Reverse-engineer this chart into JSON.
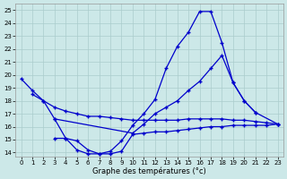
{
  "xlabel": "Graphe des températures (°c)",
  "bg_color": "#cce8e8",
  "line_color": "#0000cc",
  "grid_color": "#aacccc",
  "ylim": [
    13.7,
    25.5
  ],
  "xlim": [
    -0.5,
    23.5
  ],
  "yticks": [
    14,
    15,
    16,
    17,
    18,
    19,
    20,
    21,
    22,
    23,
    24,
    25
  ],
  "xticks": [
    0,
    1,
    2,
    3,
    4,
    5,
    6,
    7,
    8,
    9,
    10,
    11,
    12,
    13,
    14,
    15,
    16,
    17,
    18,
    19,
    20,
    21,
    22,
    23
  ],
  "curve1": {
    "x": [
      0,
      1,
      2,
      3,
      4,
      5,
      6,
      7,
      8,
      9,
      10,
      11,
      12,
      13,
      14,
      15,
      16,
      17,
      18,
      19,
      20,
      21
    ],
    "y": [
      19.7,
      18.8,
      18.0,
      16.6,
      15.1,
      14.2,
      13.9,
      13.9,
      14.1,
      14.9,
      16.1,
      17.0,
      18.1,
      20.5,
      22.2,
      23.3,
      24.9,
      24.9,
      22.5,
      19.4,
      18.0,
      17.1
    ]
  },
  "curve2": {
    "x": [
      1,
      2,
      3,
      4,
      5,
      6,
      7,
      8,
      9,
      10,
      11,
      12,
      13,
      14,
      15,
      16,
      17,
      18,
      19,
      20,
      21,
      22,
      23
    ],
    "y": [
      18.5,
      18.0,
      17.5,
      17.2,
      17.0,
      16.8,
      16.8,
      16.7,
      16.6,
      16.5,
      16.5,
      16.5,
      16.5,
      16.5,
      16.6,
      16.6,
      16.6,
      16.6,
      16.5,
      16.5,
      16.4,
      16.3,
      16.2
    ]
  },
  "curve3": {
    "x": [
      3,
      10,
      11,
      12,
      13,
      14,
      15,
      16,
      17,
      18,
      19,
      20,
      21,
      23
    ],
    "y": [
      16.6,
      15.5,
      16.2,
      17.0,
      17.5,
      18.0,
      18.8,
      19.5,
      20.5,
      21.5,
      19.4,
      18.0,
      17.1,
      16.2
    ]
  },
  "curve4": {
    "x": [
      3,
      4,
      5,
      6,
      7,
      8,
      9,
      10,
      11,
      12,
      13,
      14,
      15,
      16,
      17,
      18,
      19,
      20,
      21,
      22,
      23
    ],
    "y": [
      15.1,
      15.1,
      14.9,
      14.2,
      13.9,
      13.9,
      14.1,
      15.4,
      15.5,
      15.6,
      15.6,
      15.7,
      15.8,
      15.9,
      16.0,
      16.0,
      16.1,
      16.1,
      16.1,
      16.1,
      16.2
    ]
  }
}
